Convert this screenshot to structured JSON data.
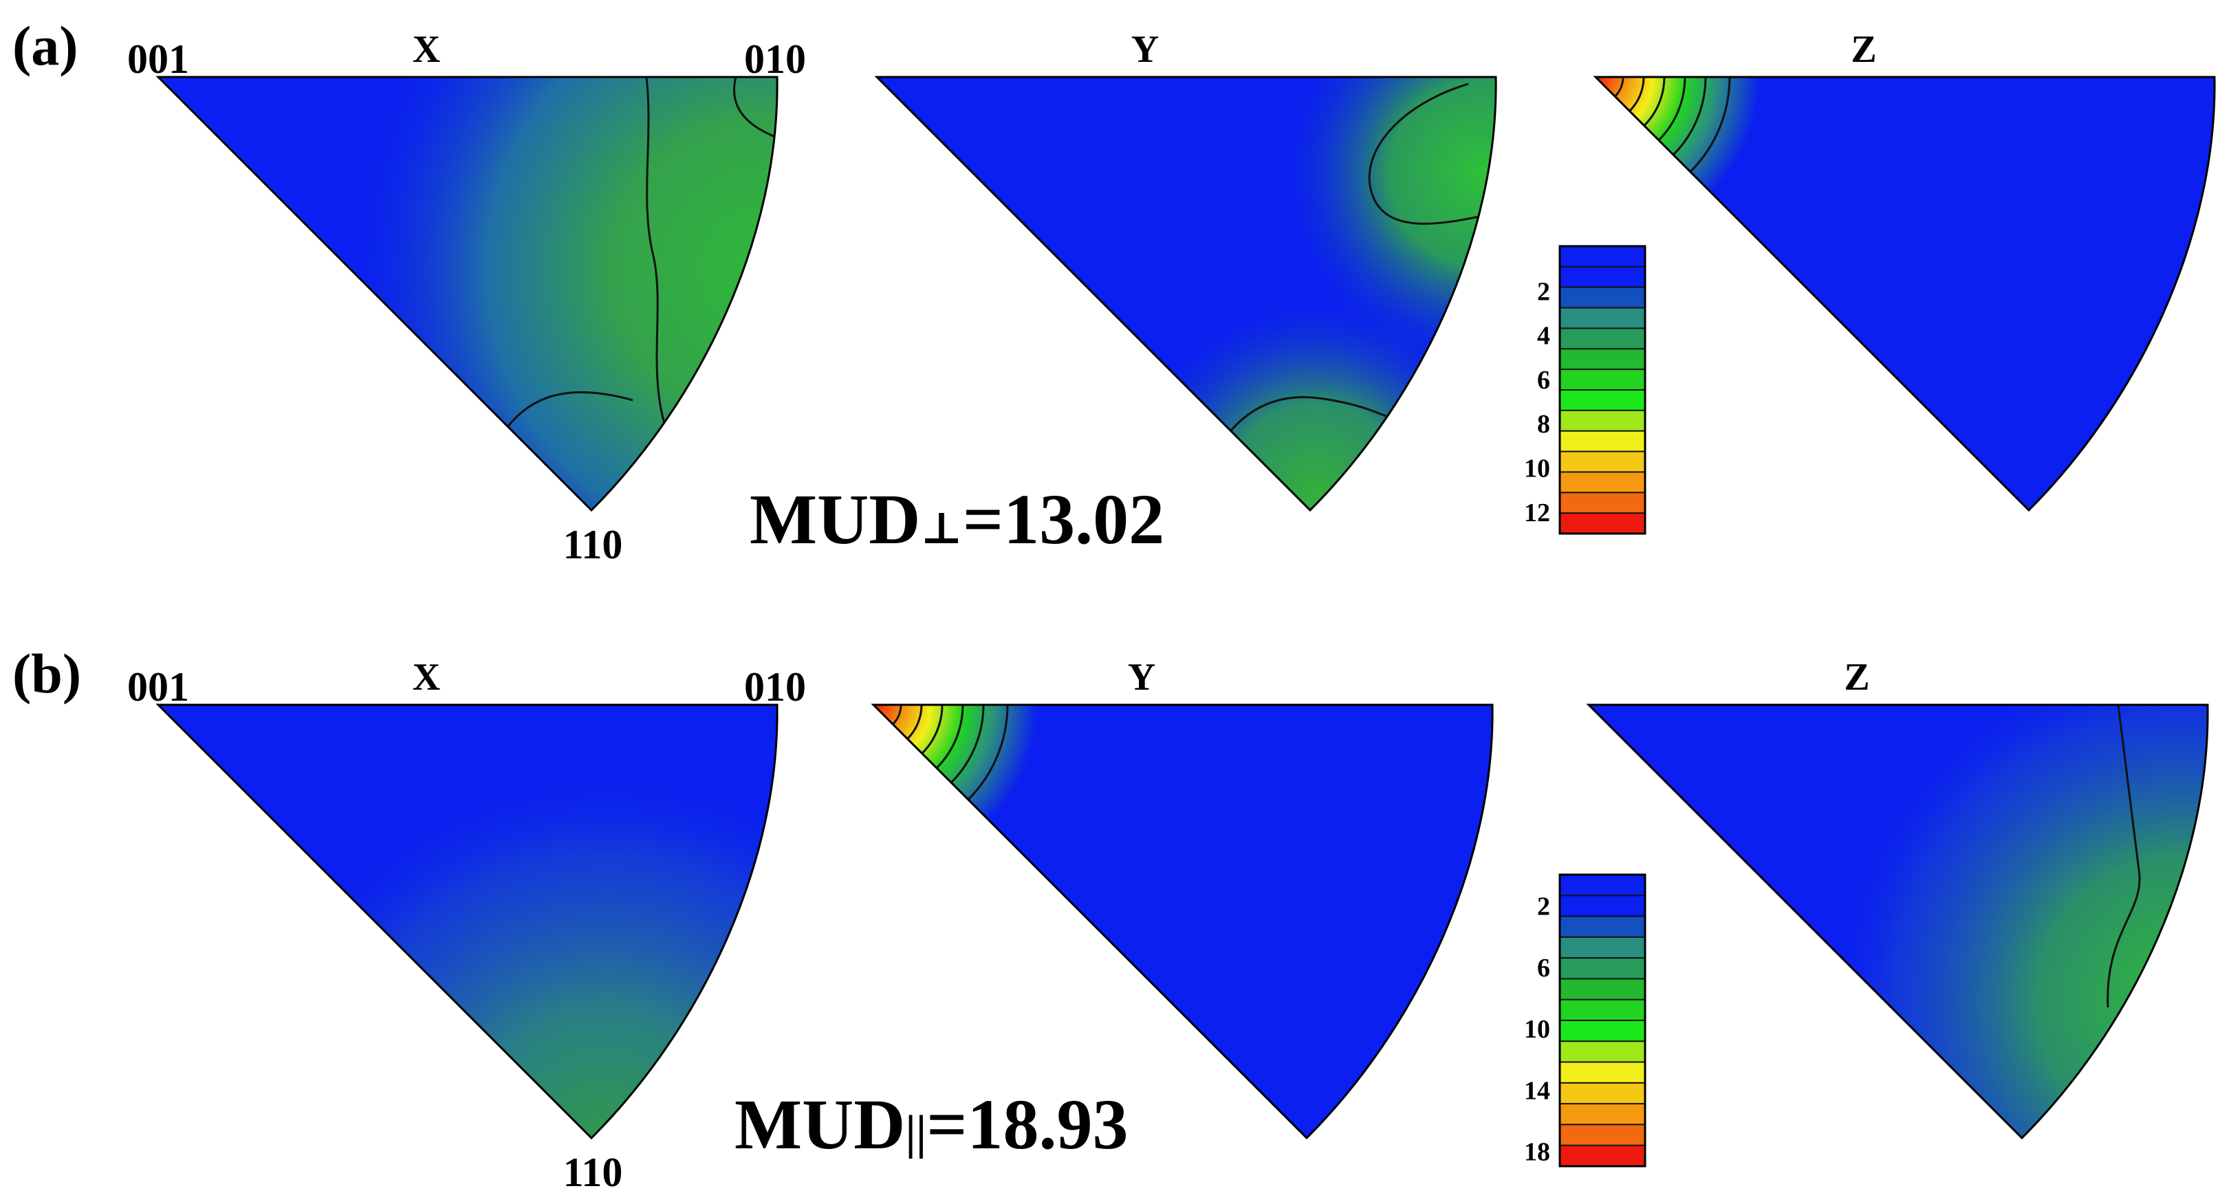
{
  "figure": {
    "rows": [
      {
        "label": "(a)",
        "mud": {
          "prefix": "MUD",
          "subscript": "⊥",
          "value": "=13.02"
        },
        "poles": {
          "p001": "001",
          "p010": "010",
          "p110": "110"
        },
        "maps": [
          {
            "axis": "X",
            "pattern": "side",
            "description": "intensity rises toward 010–110 arc"
          },
          {
            "axis": "Y",
            "pattern": "lobes",
            "description": "weak lobes near 010 and 110"
          },
          {
            "axis": "Z",
            "pattern": "hot001",
            "description": "strong peak at 001"
          }
        ],
        "colorbar": {
          "ticks": [
            "2",
            "4",
            "6",
            "8",
            "10",
            "12"
          ],
          "max": 13
        }
      },
      {
        "label": "(b)",
        "mud": {
          "prefix": "MUD",
          "subscript": "||",
          "value": "=18.93"
        },
        "poles": {
          "p001": "001",
          "p010": "010",
          "p110": "110"
        },
        "maps": [
          {
            "axis": "X",
            "pattern": "faint",
            "description": "faint rise toward 110"
          },
          {
            "axis": "Y",
            "pattern": "hot001",
            "description": "strong peak at 001"
          },
          {
            "axis": "Z",
            "pattern": "sideZ",
            "description": "rise toward 010–110 arc"
          }
        ],
        "colorbar": {
          "ticks": [
            "2",
            "6",
            "10",
            "14",
            "18"
          ],
          "max": 19
        }
      }
    ],
    "colors": {
      "blue": "#0a1ff0",
      "teal": "#2a8f80",
      "green": "#22d420",
      "yellow": "#f2f01c",
      "orange": "#f59a10",
      "red": "#ee1a10"
    }
  }
}
